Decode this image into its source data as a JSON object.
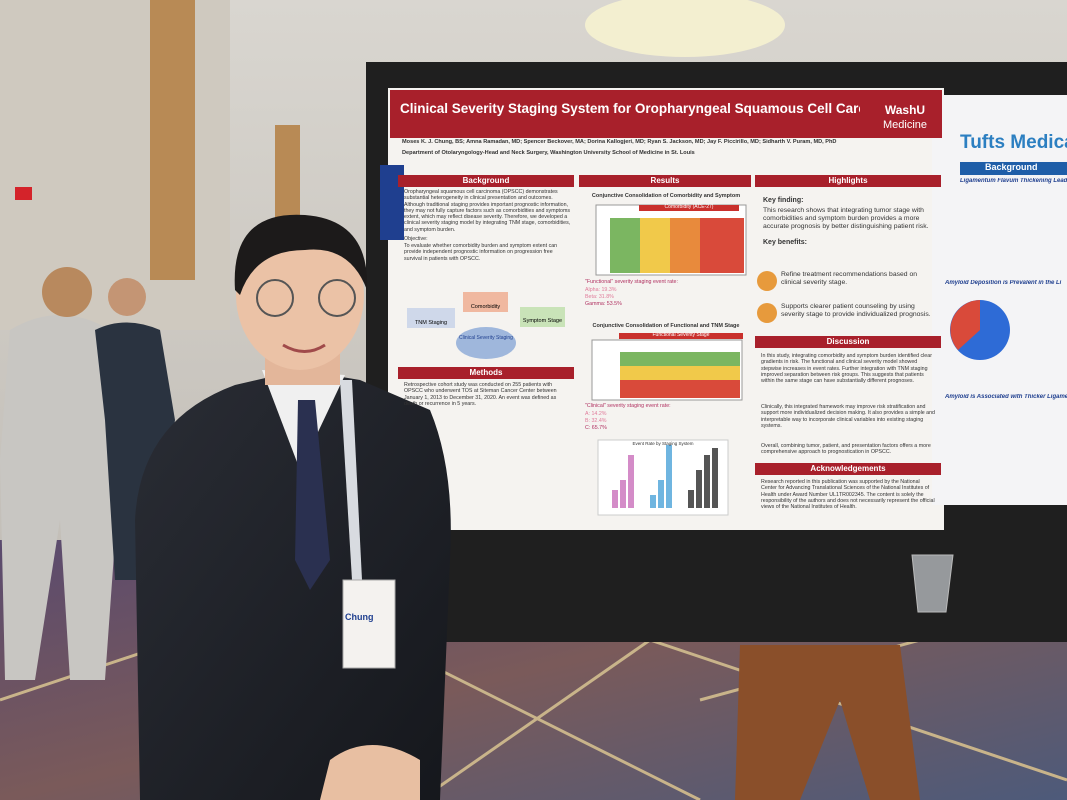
{
  "poster": {
    "title": "Clinical Severity Staging System for Oropharyngeal Squamous Cell Carcinoma",
    "logo_top": "WashU",
    "logo_bottom": "Medicine",
    "authors": "Moses K. J. Chung, BS; Amna Ramadan, MD; Spencer Beckover, MA; Dorina Kallogjeri, MD; Ryan S. Jackson, MD; Jay F. Piccirillo, MD; Sidharth V. Puram, MD, PhD",
    "department": "Department of Otolaryngology-Head and Neck Surgery, Washington University School of Medicine in St. Louis",
    "background": {
      "heading": "Background",
      "text": "Oropharyngeal squamous cell carcinoma (OPSCC) demonstrates substantial heterogeneity in clinical presentation and outcomes. Although traditional staging provides important prognostic information, they may not fully capture factors such as comorbidities and symptoms extent, which may reflect disease severity. Therefore, we developed a clinical severity staging model by integrating TNM stage, comorbidities, and symptom burden.",
      "objective_label": "Objective:",
      "objective_text": "To evaluate whether comorbidity burden and symptom extent can provide independent prognostic information on progression free survival in patients with OPSCC.",
      "diagram": [
        "Comorbidity",
        "TNM Staging",
        "Symptom Stage",
        "Clinical Severity Staging"
      ]
    },
    "methods": {
      "heading": "Methods",
      "text": "Retrospective cohort study was conducted on 255 patients with OPSCC who underwent TOS at Siteman Cancer Center between January 1, 2013 to December 31, 2020. An event was defined as death or recurrence in 5 years."
    },
    "results": {
      "heading": "Results",
      "figure1_title": "Conjunctive Consolidation of Comorbidity and Symptom",
      "figure1_header": "Comorbidity (ACE-27)",
      "rates1_label": "\"Functional\" severity staging event rate:",
      "rates1": [
        "Alpha: 19.3%",
        "Beta: 31.8%",
        "Gamma: 53.5%"
      ],
      "figure2_title": "Conjunctive Consolidation of Functional and TNM Stage",
      "figure2_header": "Functional Severity Stage",
      "rates2_label": "\"Clinical\" severity staging event rate:",
      "rates2": [
        "A: 14.2%",
        "B: 32.4%",
        "C: 65.7%"
      ],
      "figure3_title": "Event Rate by Staging System"
    },
    "highlights": {
      "heading": "Highlights",
      "key_finding_label": "Key finding:",
      "key_finding_text": "This research shows that integrating tumor stage with comorbidities and symptom burden provides a more accurate prognosis by better distinguishing patient risk.",
      "key_benefits_label": "Key benefits:",
      "benefits": [
        "Refine treatment recommendations based on clinical severity stage.",
        "Supports clearer patient counseling by using severity stage to provide individualized prognosis."
      ]
    },
    "discussion": {
      "heading": "Discussion",
      "paragraphs": [
        "In this study, integrating comorbidity and symptom burden identified clear gradients in risk. The functional and clinical severity model showed stepwise increases in event rates. Further integration with TNM staging improved separation between risk groups. This suggests that patients within the same stage can have substantially different prognoses.",
        "Clinically, this integrated framework may improve risk stratification and support more individualized decision making. It also provides a simple and interpretable way to incorporate clinical variables into existing staging systems.",
        "Overall, combining tumor, patient, and presentation factors offers a more comprehensive approach to prognostication in OPSCC."
      ]
    },
    "acknowledgements": {
      "heading": "Acknowledgements",
      "text": "Research reported in this publication was supported by the National Center for Advancing Translational Sciences of the National Institutes of Health under Award Number UL1TR002345. The content is solely the responsibility of the authors and does not necessarily represent the official views of the National Institutes of Health."
    }
  },
  "right_poster": {
    "logo": "Tufts Medical Center",
    "heading": "Background",
    "subheadings": [
      "Ligamentum Flavum Thickening Leads",
      "Amyloid Deposition is Prevalent in the Li",
      "Amyloid is Associated with Thicker Ligamen"
    ]
  },
  "badge": {
    "name": "Chung"
  }
}
